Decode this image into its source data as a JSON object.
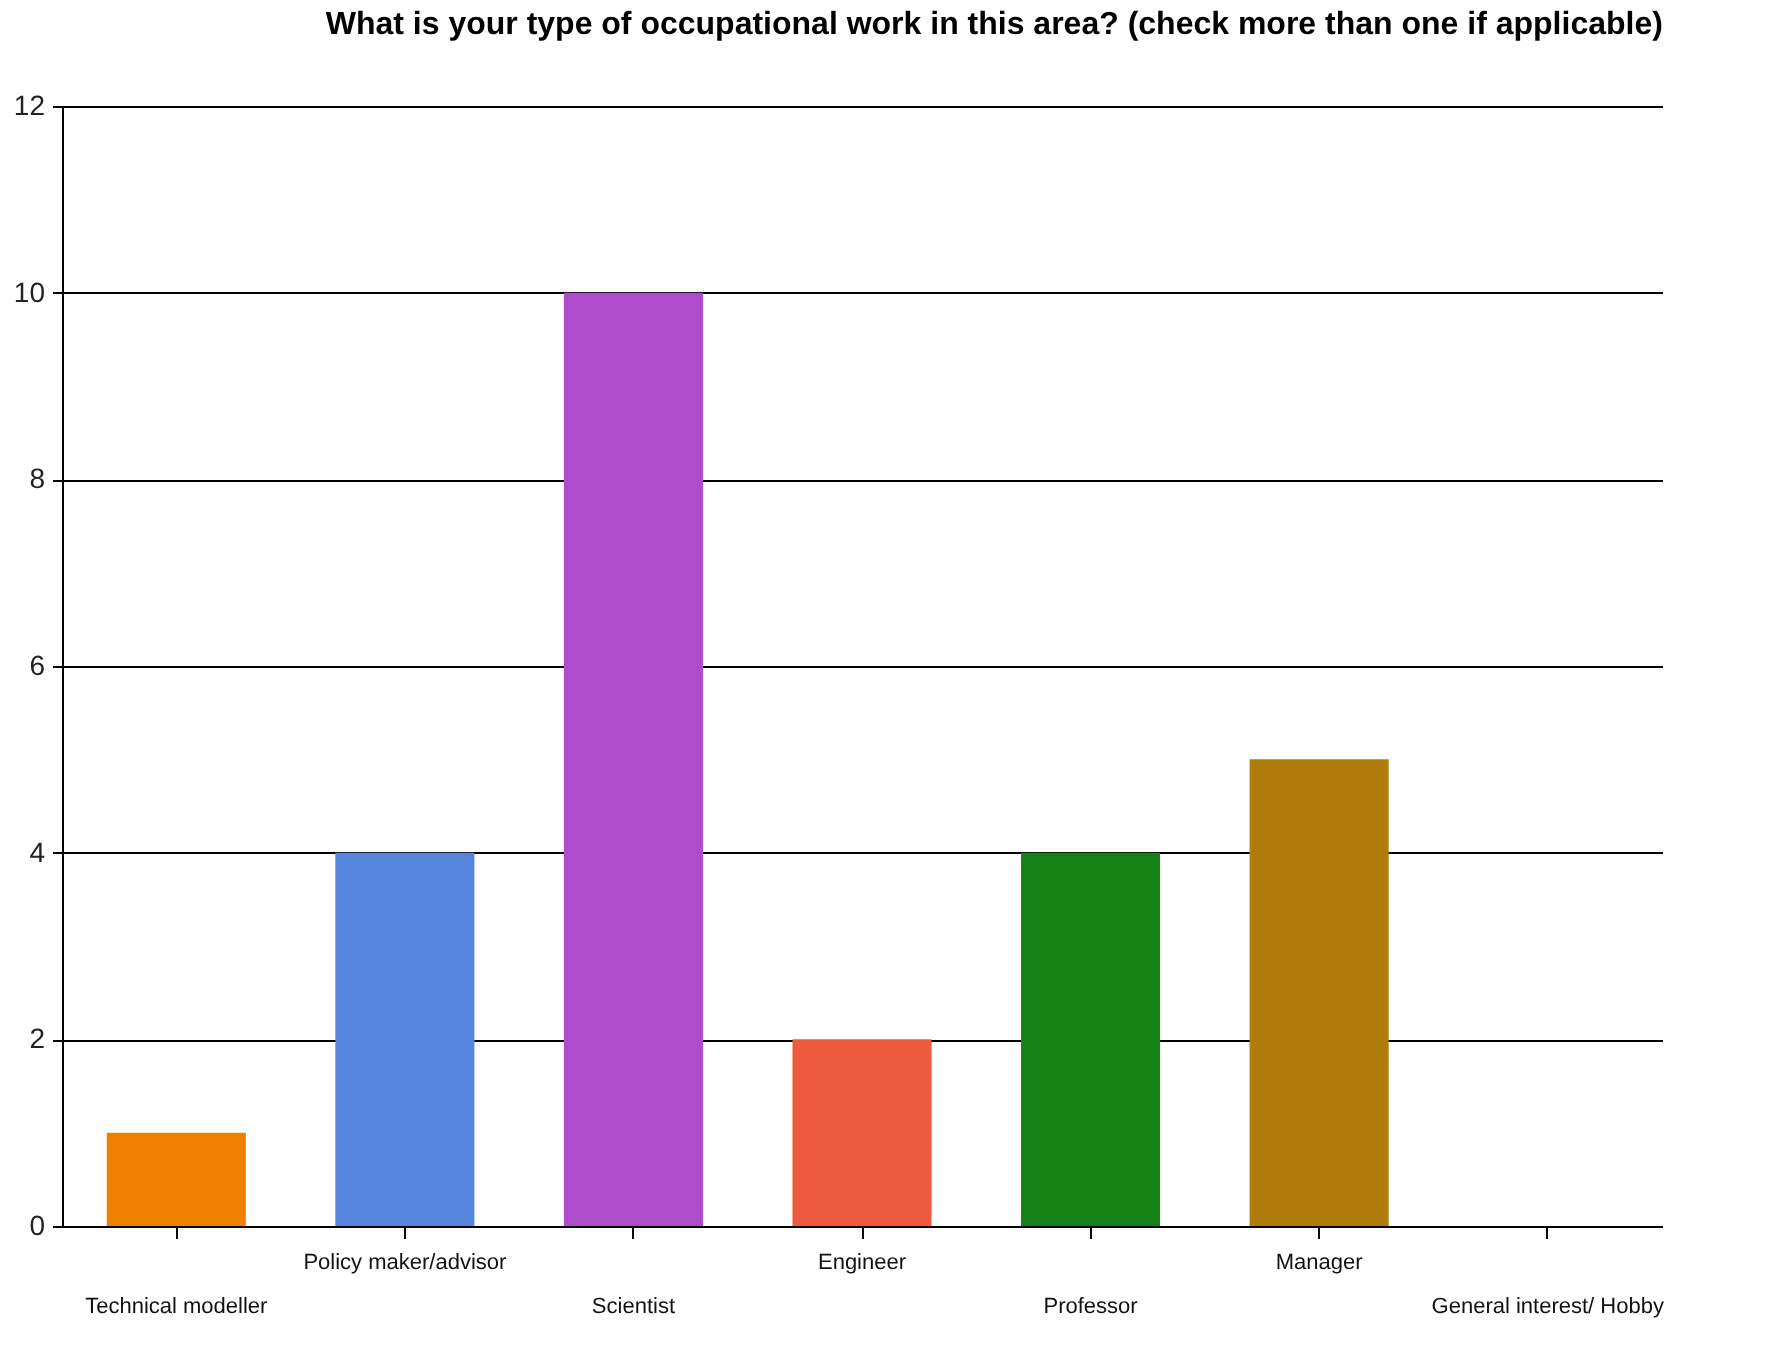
{
  "chart_data": {
    "type": "bar",
    "title": "What is your type of occupational work in this area? (check more than one if applicable)",
    "categories": [
      "Technical modeller",
      "Policy maker/advisor",
      "Scientist",
      "Engineer",
      "Professor",
      "Manager",
      "General interest/ Hobby"
    ],
    "values": [
      1,
      4,
      10,
      2,
      4,
      5,
      0
    ],
    "colors": [
      "#f08000",
      "#5585dc",
      "#ae4ccc",
      "#ef5a3e",
      "#158016",
      "#b07d0c",
      "#888888"
    ],
    "ylim": [
      0,
      12
    ],
    "yticks": [
      0,
      2,
      4,
      6,
      8,
      10,
      12
    ],
    "grid": "y",
    "legend": false
  }
}
